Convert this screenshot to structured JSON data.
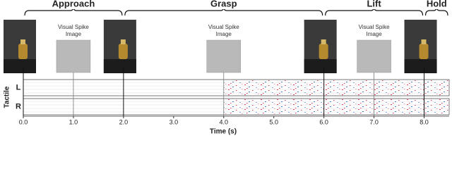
{
  "chart_data": {
    "type": "raster",
    "xlabel": "Time (s)",
    "ylabel": "Tactile",
    "rows": [
      "L",
      "R"
    ],
    "phases": [
      {
        "name": "Approach",
        "start": 0,
        "end": 2
      },
      {
        "name": "Grasp",
        "start": 2,
        "end": 6
      },
      {
        "name": "Lift",
        "start": 6,
        "end": 8
      },
      {
        "name": "Hold",
        "start": 8,
        "end": 8.5
      }
    ],
    "photo_times": [
      0,
      2,
      6,
      8
    ],
    "spike_images": [
      {
        "time": 1,
        "caption": [
          "Visual Spike",
          "Image"
        ]
      },
      {
        "time": 4,
        "caption": [
          "Visual Spike",
          "Image"
        ]
      },
      {
        "time": 7,
        "caption": [
          "Visual Spike",
          "Image"
        ]
      }
    ],
    "xlim": [
      0,
      8.5
    ],
    "xticks": [
      {
        "value": 0,
        "label": "0.0"
      },
      {
        "value": 1,
        "label": "1.0"
      },
      {
        "value": 2,
        "label": "2.0"
      },
      {
        "value": 3,
        "label": "3.0"
      },
      {
        "value": 4,
        "label": "4.0"
      },
      {
        "value": 5,
        "label": "5.0"
      },
      {
        "value": 6,
        "label": "6.0"
      },
      {
        "value": 7,
        "label": "7.0"
      },
      {
        "value": 8,
        "label": "8.0"
      }
    ]
  }
}
